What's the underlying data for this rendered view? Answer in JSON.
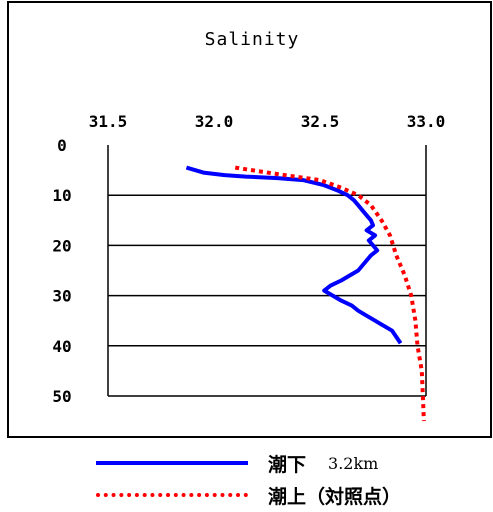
{
  "chart_data": {
    "type": "line",
    "title": "Salinity",
    "x_ticks": [
      "31.5",
      "32.0",
      "32.5",
      "33.0"
    ],
    "x_tick_values": [
      31.5,
      32.0,
      32.5,
      33.0
    ],
    "y_ticks": [
      "0",
      "10",
      "20",
      "30",
      "40",
      "50"
    ],
    "y_tick_values": [
      0,
      10,
      20,
      30,
      40,
      50
    ],
    "xlim": [
      31.5,
      33.0
    ],
    "ylim": [
      0,
      50
    ],
    "y_inverted": true,
    "grid": "horizontal",
    "series": [
      {
        "name": "潮下",
        "color": "#0000ff",
        "style": "solid",
        "x": [
          31.87,
          31.95,
          32.05,
          32.15,
          32.3,
          32.42,
          32.52,
          32.58,
          32.63,
          32.66,
          32.68,
          32.7,
          32.72,
          32.74,
          32.75,
          32.72,
          32.76,
          32.73,
          32.75,
          32.77,
          32.74,
          32.72,
          32.7,
          32.68,
          32.64,
          32.6,
          32.55,
          32.52,
          32.56,
          32.6,
          32.65,
          32.68,
          32.72,
          32.76,
          32.8,
          32.84,
          32.88
        ],
        "y": [
          4.5,
          5.5,
          6,
          6.3,
          6.6,
          7,
          8,
          9,
          10,
          11,
          12,
          13,
          14,
          15,
          16,
          17,
          18,
          19,
          20,
          21,
          22,
          23,
          24,
          25,
          26,
          27,
          28,
          29,
          30,
          31,
          32,
          33,
          34,
          35,
          36,
          37,
          39.5
        ]
      },
      {
        "name": "潮上（対照点）",
        "color": "#ff0000",
        "style": "dotted",
        "x": [
          32.1,
          32.3,
          32.5,
          32.6,
          32.68,
          32.74,
          32.79,
          32.83,
          32.86,
          32.9,
          32.93,
          32.95,
          32.96,
          32.98,
          32.99
        ],
        "y": [
          4.5,
          5.8,
          7,
          8.5,
          10,
          12,
          15,
          18,
          22,
          26,
          30,
          35,
          40,
          45,
          55
        ]
      }
    ]
  },
  "legend": {
    "series_1_label": "潮下",
    "series_1_extra": "3.2km",
    "series_2_label": "潮上（対照点）"
  }
}
